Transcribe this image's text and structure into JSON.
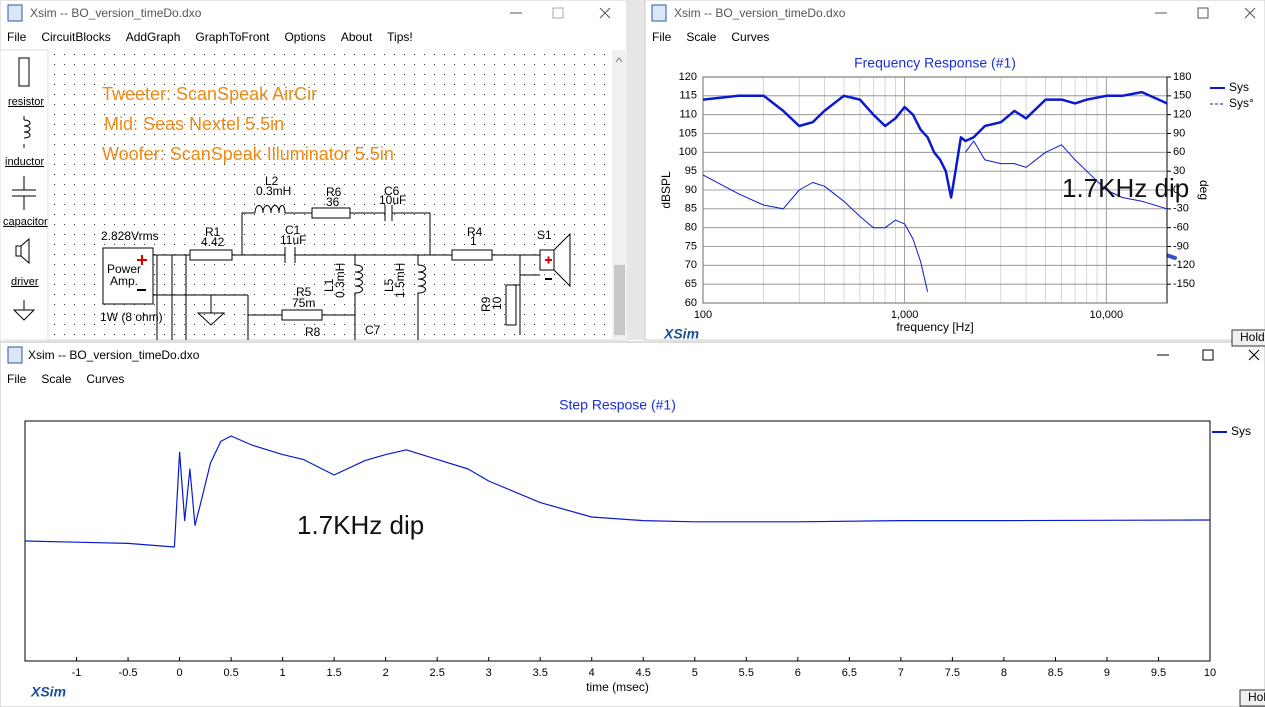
{
  "windows": [
    {
      "title": "Xsim -- BO_version_timeDo.dxo",
      "menu": [
        "File",
        "CircuitBlocks",
        "AddGraph",
        "GraphToFront",
        "Options",
        "About",
        "Tips!"
      ]
    },
    {
      "title": "Xsim -- BO_version_timeDo.dxo",
      "menu": [
        "File",
        "Scale",
        "Curves"
      ]
    },
    {
      "title": "Xsim -- BO_version_timeDo.dxo",
      "menu": [
        "File",
        "Scale",
        "Curves"
      ]
    }
  ],
  "palette": [
    "resistor",
    "inductor",
    "capacitor",
    "driver"
  ],
  "schematic": {
    "notes": [
      "Tweeter: ScanSpeak AirCir",
      "Mid: Seas Nextel 5.5in",
      "Woofer: ScanSpeak Illuminator 5.5in"
    ],
    "labels": [
      "2.828Vrms",
      "Power",
      "Amp.",
      "1W (8 ohm)",
      "R1",
      "4.42",
      "L2",
      "0.3mH",
      "R6",
      "36",
      "C6",
      "10uF",
      "C1",
      "11uF",
      "R4",
      "1",
      "S1",
      "L1",
      "0.3mH",
      "L5",
      "1.5mH",
      "R5",
      "75m",
      "R8",
      "R9",
      "10",
      "C7"
    ]
  },
  "chart_data": [
    {
      "type": "line",
      "title": "Frequency Response (#1)",
      "x_label": "frequency [Hz]",
      "y_label": "dBSPL",
      "y2_label": "deg",
      "x_scale": "log",
      "xlim": [
        100,
        20000
      ],
      "xticks": [
        100,
        {
          "value": 1000,
          "label": "1,000"
        },
        {
          "value": 10000,
          "label": "10,000"
        }
      ],
      "ylim": [
        60,
        120
      ],
      "yticks": [
        60,
        65,
        70,
        75,
        80,
        85,
        90,
        95,
        100,
        105,
        110,
        115,
        120
      ],
      "y2lim": [
        -180,
        180
      ],
      "y2ticks": [
        -150,
        -120,
        -90,
        -60,
        -30,
        0,
        30,
        60,
        90,
        120,
        150,
        180
      ],
      "grid": true,
      "legend": "right",
      "x": [
        100,
        150,
        200,
        250,
        300,
        350,
        400,
        500,
        600,
        700,
        800,
        900,
        1000,
        1100,
        1200,
        1300,
        1400,
        1500,
        1600,
        1700,
        1800,
        1900,
        2000,
        2200,
        2500,
        3000,
        3500,
        4000,
        5000,
        6000,
        7000,
        8000,
        10000,
        12000,
        15000,
        20000
      ],
      "series": [
        {
          "name": "Sys",
          "color": "#0a1ad0",
          "values": [
            114,
            115,
            115,
            111,
            107,
            108,
            111,
            115,
            114,
            110,
            107,
            109,
            112,
            110,
            106,
            104,
            100,
            98,
            95,
            88,
            96,
            104,
            103,
            104,
            107,
            108,
            111,
            109,
            114,
            114,
            113,
            114,
            115,
            115,
            116,
            113
          ]
        },
        {
          "name": "Sys°",
          "color": "#0a1ad0",
          "axis": "y2",
          "values": [
            24,
            -6,
            -24,
            -30,
            0,
            12,
            6,
            -18,
            -42,
            -60,
            -60,
            -48,
            -54,
            -78,
            -114,
            -162,
            null,
            null,
            null,
            null,
            null,
            null,
            60,
            78,
            48,
            42,
            42,
            36,
            60,
            72,
            48,
            30,
            0,
            -12,
            -18,
            -30
          ]
        }
      ],
      "annotation": "1.7KHz dip",
      "watermark": "XSim",
      "button": "Hold"
    },
    {
      "type": "line",
      "title": "Step Respose (#1)",
      "x_label": "time (msec)",
      "xlim": [
        -1.5,
        10
      ],
      "xticks": [
        -1,
        -0.5,
        0,
        0.5,
        1,
        1.5,
        2,
        2.5,
        3,
        3.5,
        4,
        4.5,
        5,
        5.5,
        6,
        6.5,
        7,
        7.5,
        8,
        8.5,
        9,
        9.5,
        10
      ],
      "ylim": [
        -1,
        1
      ],
      "legend": "right",
      "x": [
        -1.5,
        -1,
        -0.5,
        -0.05,
        0,
        0.05,
        0.1,
        0.15,
        0.2,
        0.3,
        0.4,
        0.5,
        0.7,
        1,
        1.2,
        1.5,
        1.8,
        2,
        2.2,
        2.5,
        2.8,
        3,
        3.5,
        4,
        4.5,
        5,
        6,
        7,
        8,
        10
      ],
      "series": [
        {
          "name": "Sys",
          "color": "#0a1ad0",
          "values": [
            0,
            -0.01,
            -0.02,
            -0.05,
            0.74,
            0.17,
            0.6,
            0.13,
            0.3,
            0.65,
            0.83,
            0.875,
            0.8,
            0.72,
            0.68,
            0.55,
            0.67,
            0.72,
            0.76,
            0.68,
            0.6,
            0.5,
            0.32,
            0.2,
            0.17,
            0.16,
            0.16,
            0.17,
            0.17,
            0.175
          ]
        }
      ],
      "annotation": "1.7KHz dip",
      "watermark": "XSim",
      "button": "Hold"
    }
  ]
}
